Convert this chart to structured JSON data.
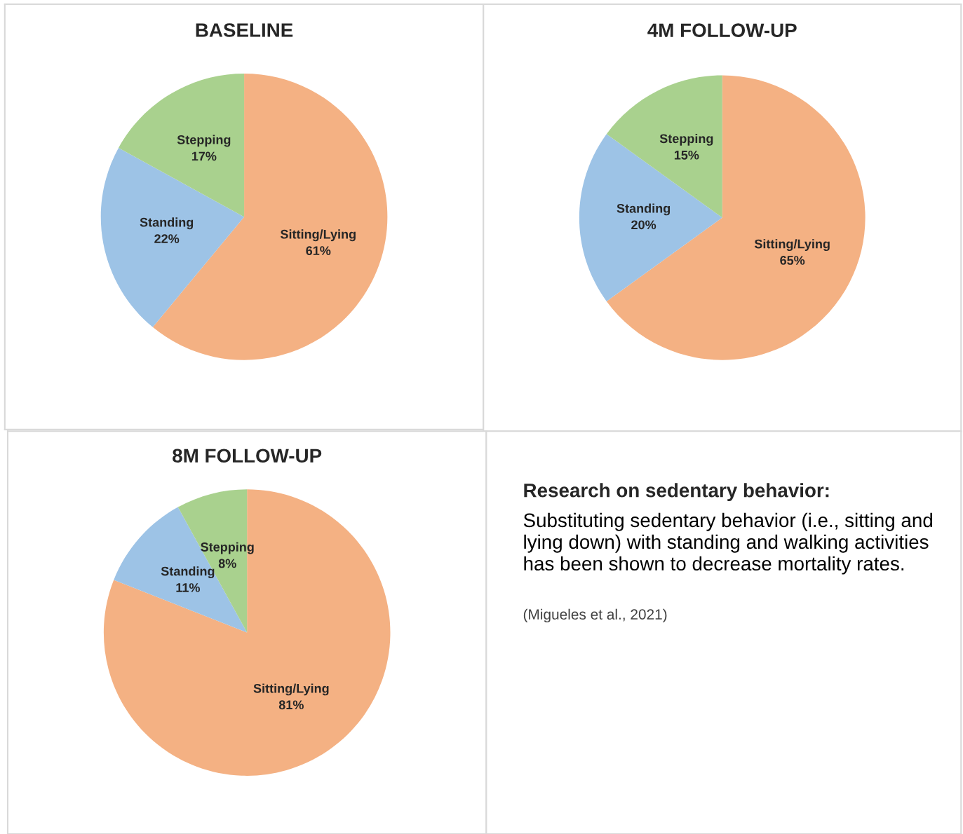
{
  "chart_data": [
    {
      "type": "pie",
      "title": "BASELINE",
      "categories": [
        "Sitting/Lying",
        "Standing",
        "Stepping"
      ],
      "values": [
        61,
        22,
        17
      ],
      "value_labels": [
        "61%",
        "22%",
        "17%"
      ],
      "colors": [
        "#f4b183",
        "#9dc3e6",
        "#a9d18e"
      ],
      "data_labels": true
    },
    {
      "type": "pie",
      "title": "4M FOLLOW-UP",
      "categories": [
        "Sitting/Lying",
        "Standing",
        "Stepping"
      ],
      "values": [
        65,
        20,
        15
      ],
      "value_labels": [
        "65%",
        "20%",
        "15%"
      ],
      "colors": [
        "#f4b183",
        "#9dc3e6",
        "#a9d18e"
      ],
      "data_labels": true
    },
    {
      "type": "pie",
      "title": "8M FOLLOW-UP",
      "categories": [
        "Sitting/Lying",
        "Standing",
        "Stepping"
      ],
      "values": [
        81,
        11,
        8
      ],
      "value_labels": [
        "81%",
        "11%",
        "8%"
      ],
      "colors": [
        "#f4b183",
        "#9dc3e6",
        "#a9d18e"
      ],
      "data_labels": true
    },
    {
      "type": "other",
      "title": "Research on sedentary behavior:",
      "annotations": [
        "Substituting sedentary behavior (i.e., sitting and lying down) with standing and walking activities has been shown to decrease mortality rates.",
        "(Migueles et al., 2021)"
      ]
    }
  ]
}
